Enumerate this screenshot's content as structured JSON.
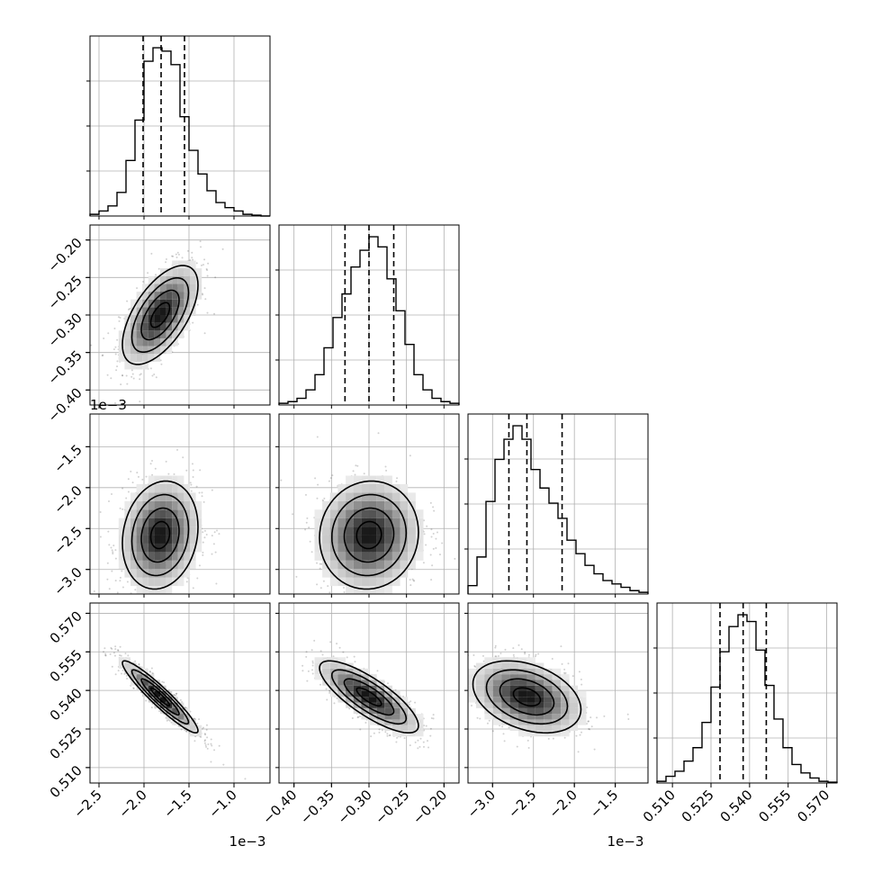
{
  "chart_data": {
    "type": "corner",
    "grid": true,
    "parameters": [
      {
        "axis_range": [
          -0.0026,
          -0.0006
        ],
        "ticks": [
          -0.0025,
          -0.002,
          -0.0015,
          -0.001
        ],
        "tick_labels": [
          "−2.5",
          "−2.0",
          "−1.5",
          "−1.0"
        ],
        "offset_label": "1e−3",
        "median": -0.00181,
        "quantiles": [
          -0.00201,
          -0.00155
        ]
      },
      {
        "axis_range": [
          -0.42,
          -0.18
        ],
        "ticks": [
          -0.4,
          -0.35,
          -0.3,
          -0.25,
          -0.2
        ],
        "tick_labels": [
          "−0.40",
          "−0.35",
          "−0.30",
          "−0.25",
          "−0.20"
        ],
        "offset_label": "",
        "median": -0.3,
        "quantiles": [
          -0.332,
          -0.267
        ]
      },
      {
        "axis_range": [
          -0.0033,
          -0.0011
        ],
        "ticks": [
          -0.003,
          -0.0025,
          -0.002,
          -0.0015
        ],
        "tick_labels": [
          "−3.0",
          "−2.5",
          "−2.0",
          "−1.5"
        ],
        "offset_label": "1e−3",
        "median": -0.00258,
        "quantiles": [
          -0.0028,
          -0.00215
        ]
      },
      {
        "axis_range": [
          0.504,
          0.574
        ],
        "ticks": [
          0.51,
          0.525,
          0.54,
          0.555,
          0.57
        ],
        "tick_labels": [
          "0.510",
          "0.525",
          "0.540",
          "0.555",
          "0.570"
        ],
        "offset_label": "",
        "median": 0.5375,
        "quantiles": [
          0.5285,
          0.5465
        ]
      }
    ],
    "histograms": [
      {
        "parameter": 0,
        "values": [
          1,
          3,
          6,
          14,
          33,
          57,
          92,
          100,
          98,
          90,
          59,
          39,
          25,
          15,
          8,
          5,
          3,
          1,
          0.5,
          0
        ]
      },
      {
        "parameter": 1,
        "values": [
          1,
          2,
          4,
          9,
          18,
          34,
          52,
          66,
          82,
          92,
          100,
          94,
          75,
          56,
          36,
          18,
          9,
          4,
          2,
          1
        ]
      },
      {
        "parameter": 2,
        "values": [
          5,
          22,
          55,
          80,
          92,
          100,
          92,
          74,
          63,
          54,
          45,
          32,
          24,
          17,
          12,
          8,
          6,
          4,
          2,
          1
        ]
      },
      {
        "parameter": 3,
        "values": [
          1,
          4,
          7,
          13,
          21,
          36,
          57,
          78,
          93,
          100,
          96,
          79,
          58,
          38,
          21,
          11,
          6,
          3,
          1,
          0.5
        ]
      }
    ],
    "pairs": [
      {
        "x_param": 0,
        "y_param": 1,
        "mean": [
          -0.00182,
          -0.3
        ],
        "sd": [
          0.00021,
          0.033
        ],
        "correlation": 0.6
      },
      {
        "x_param": 0,
        "y_param": 2,
        "mean": [
          -0.00182,
          -0.00258
        ],
        "sd": [
          0.00021,
          0.00033
        ],
        "correlation": 0.15
      },
      {
        "x_param": 1,
        "y_param": 2,
        "mean": [
          -0.3,
          -0.00258
        ],
        "sd": [
          0.033,
          0.00033
        ],
        "correlation": 0.05
      },
      {
        "x_param": 0,
        "y_param": 3,
        "mean": [
          -0.00182,
          0.5375
        ],
        "sd": [
          0.00021,
          0.007
        ],
        "correlation": -0.94
      },
      {
        "x_param": 1,
        "y_param": 3,
        "mean": [
          -0.3,
          0.5375
        ],
        "sd": [
          0.033,
          0.007
        ],
        "correlation": -0.8
      },
      {
        "x_param": 2,
        "y_param": 3,
        "mean": [
          -0.00258,
          0.5375
        ],
        "sd": [
          0.00033,
          0.007
        ],
        "correlation": -0.35
      }
    ]
  }
}
